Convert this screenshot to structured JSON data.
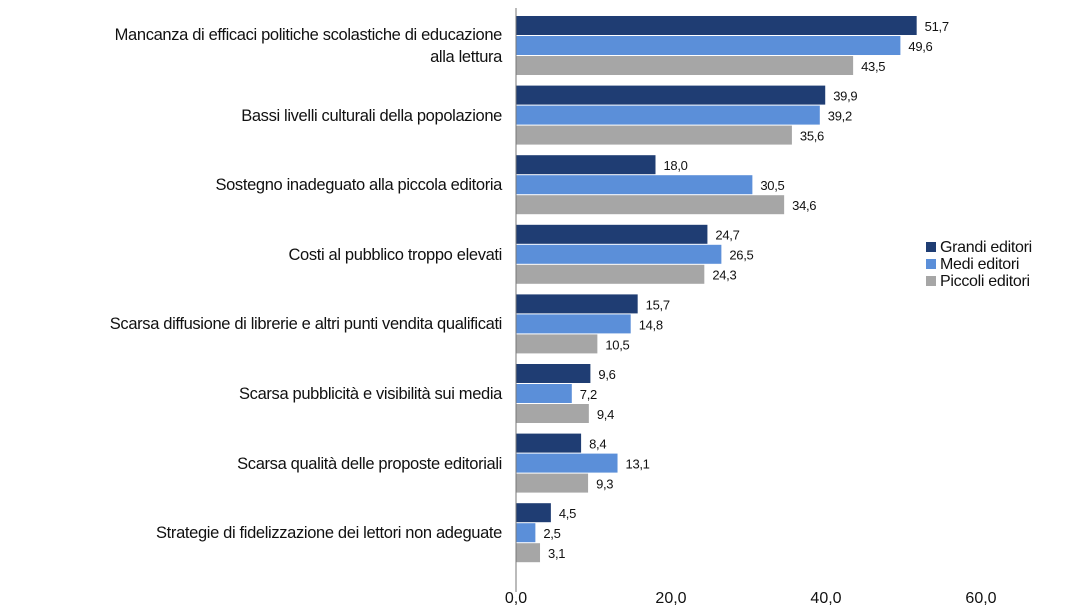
{
  "chart_data": {
    "type": "bar",
    "orientation": "horizontal",
    "categories": [
      "Mancanza di efficaci politiche scolastiche di educazione\nalla lettura",
      "Bassi livelli culturali della popolazione",
      "Sostegno inadeguato alla piccola editoria",
      "Costi al pubblico troppo elevati",
      "Scarsa diffusione di librerie e altri punti vendita qualificati",
      "Scarsa pubblicità e visibilità sui media",
      "Scarsa qualità delle proposte editoriali",
      "Strategie di fidelizzazione dei lettori non adeguate"
    ],
    "series": [
      {
        "name": "Grandi editori",
        "color": "#1f3d73",
        "values": [
          51.7,
          39.9,
          18.0,
          24.7,
          15.7,
          9.6,
          8.4,
          4.5
        ],
        "value_labels": [
          "51,7",
          "39,9",
          "18,0",
          "24,7",
          "15,7",
          "9,6",
          "8,4",
          "4,5"
        ]
      },
      {
        "name": "Medi editori",
        "color": "#5b8fd9",
        "values": [
          49.6,
          39.2,
          30.5,
          26.5,
          14.8,
          7.2,
          13.1,
          2.5
        ],
        "value_labels": [
          "49,6",
          "39,2",
          "30,5",
          "26,5",
          "14,8",
          "7,2",
          "13,1",
          "2,5"
        ]
      },
      {
        "name": "Piccoli editori",
        "color": "#a6a6a6",
        "values": [
          43.5,
          35.6,
          34.6,
          24.3,
          10.5,
          9.4,
          9.3,
          3.1
        ],
        "value_labels": [
          "43,5",
          "35,6",
          "34,6",
          "24,3",
          "10,5",
          "9,4",
          "9,3",
          "3,1"
        ]
      }
    ],
    "xlim": [
      0,
      60
    ],
    "xticks": [
      {
        "value": 0,
        "label": "0,0"
      },
      {
        "value": 20,
        "label": "20,0"
      },
      {
        "value": 40,
        "label": "40,0"
      },
      {
        "value": 60,
        "label": "60,0"
      }
    ],
    "legend": "right"
  }
}
